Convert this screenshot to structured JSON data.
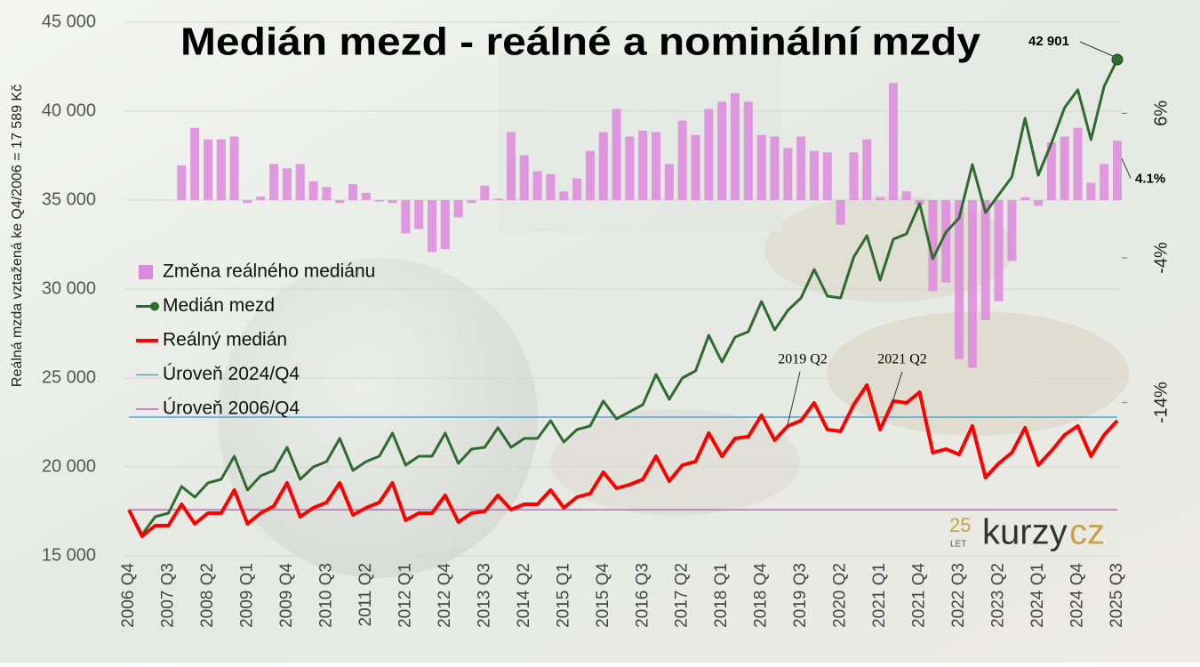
{
  "chart_data": {
    "type": "combo",
    "title": "Medián mezd - reálné a nominální mzdy",
    "y_axis_label": "Reálná mzda vztažená ke Q4/2006 = 17 589 Kč",
    "categories": [
      "2006 Q4",
      null,
      null,
      "2007 Q3",
      null,
      null,
      "2008 Q2",
      null,
      null,
      "2009 Q1",
      null,
      null,
      "2009 Q4",
      null,
      null,
      "2010 Q3",
      null,
      null,
      "2011 Q2",
      null,
      null,
      "2012 Q1",
      null,
      null,
      "2012 Q4",
      null,
      null,
      "2013 Q3",
      null,
      null,
      "2014 Q2",
      null,
      null,
      "2015 Q1",
      null,
      null,
      "2015 Q4",
      null,
      null,
      "2016 Q3",
      null,
      null,
      "2017 Q2",
      null,
      null,
      "2018 Q1",
      null,
      null,
      "2018 Q4",
      null,
      null,
      "2019 Q3",
      null,
      null,
      "2020 Q2",
      null,
      null,
      "2021 Q1",
      null,
      null,
      "2021 Q4",
      null,
      null,
      "2022 Q3",
      null,
      null,
      "2023 Q2",
      null,
      null,
      "2024 Q1",
      null,
      null,
      "2024 Q4",
      null,
      null,
      "2025 Q3"
    ],
    "ylim": [
      15000,
      45000
    ],
    "yticks": [
      {
        "value": 15000,
        "label": "15 000"
      },
      {
        "value": 20000,
        "label": "20 000"
      },
      {
        "value": 25000,
        "label": "25 000"
      },
      {
        "value": 30000,
        "label": "30 000"
      },
      {
        "value": 35000,
        "label": "35 000"
      },
      {
        "value": 40000,
        "label": "40 000"
      },
      {
        "value": 45000,
        "label": "45 000"
      }
    ],
    "y2lim": [
      -24.6,
      12.3
    ],
    "y2ticks": [
      {
        "value": 6,
        "label": "6%"
      },
      {
        "value": -4,
        "label": "-4%"
      },
      {
        "value": -14,
        "label": "-14%"
      }
    ],
    "grid": true,
    "legend": "left",
    "series": [
      {
        "name": "Změna reálného mediánu",
        "type": "bar",
        "axis": "y2",
        "color": "#dd88dd",
        "values": [
          null,
          null,
          null,
          null,
          2.4,
          5.0,
          4.2,
          4.2,
          4.4,
          -0.2,
          0.25,
          2.5,
          2.2,
          2.5,
          1.3,
          0.9,
          -0.2,
          1.1,
          0.5,
          -0.1,
          -0.2,
          -2.3,
          -2.0,
          -3.6,
          -3.4,
          -1.2,
          -0.2,
          1.0,
          0.1,
          4.7,
          3.1,
          2.0,
          1.8,
          0.6,
          1.5,
          3.4,
          4.7,
          6.3,
          4.4,
          4.8,
          4.7,
          2.5,
          5.5,
          4.5,
          6.3,
          6.8,
          7.4,
          6.8,
          4.5,
          4.4,
          3.6,
          4.4,
          3.4,
          3.3,
          -1.7,
          3.3,
          4.2,
          0.2,
          8.1,
          0.6,
          -0.3,
          -6.3,
          -5.7,
          -11.0,
          -11.6,
          -8.3,
          -7.0,
          -4.2,
          0.2,
          -0.4,
          4.0,
          4.4,
          5.0,
          1.2,
          2.5,
          4.1
        ],
        "value_labels": [
          null,
          null,
          null,
          null,
          null,
          null,
          null,
          null,
          null,
          null,
          null,
          null,
          null,
          null,
          null,
          null,
          null,
          null,
          null,
          null,
          null,
          null,
          null,
          null,
          null,
          null,
          null,
          null,
          null,
          null,
          null,
          null,
          null,
          null,
          null,
          null,
          null,
          null,
          null,
          null,
          null,
          null,
          null,
          null,
          null,
          null,
          null,
          null,
          null,
          null,
          null,
          null,
          null,
          null,
          null,
          null,
          null,
          null,
          null,
          null,
          null,
          null,
          null,
          null,
          null,
          null,
          null,
          null,
          null,
          null,
          null,
          null,
          null,
          null,
          null,
          "4.1%"
        ]
      },
      {
        "name": "Medián mezd",
        "type": "line",
        "color": "#2e6b2e",
        "values": [
          17589,
          16200,
          17200,
          17400,
          18900,
          18300,
          19100,
          19300,
          20600,
          18700,
          19500,
          19800,
          21100,
          19300,
          20000,
          20300,
          21600,
          19800,
          20300,
          20600,
          21900,
          20100,
          20600,
          20600,
          21900,
          20200,
          21000,
          21100,
          22200,
          21100,
          21600,
          21600,
          22600,
          21400,
          22100,
          22300,
          23700,
          22700,
          23100,
          23500,
          25200,
          23800,
          25000,
          25400,
          27400,
          25900,
          27300,
          27600,
          29300,
          27700,
          28800,
          29500,
          31100,
          29600,
          29500,
          31800,
          33000,
          30500,
          32800,
          33100,
          34800,
          31700,
          33200,
          34000,
          37000,
          34300,
          35300,
          36300,
          39600,
          36400,
          38200,
          40200,
          41200,
          38400,
          41400,
          42901
        ],
        "value_labels": [
          null,
          null,
          null,
          null,
          null,
          null,
          null,
          null,
          null,
          null,
          null,
          null,
          null,
          null,
          null,
          null,
          null,
          null,
          null,
          null,
          null,
          null,
          null,
          null,
          null,
          null,
          null,
          null,
          null,
          null,
          null,
          null,
          null,
          null,
          null,
          null,
          null,
          null,
          null,
          null,
          null,
          null,
          null,
          null,
          null,
          null,
          null,
          null,
          null,
          null,
          null,
          null,
          null,
          null,
          null,
          null,
          null,
          null,
          null,
          null,
          null,
          null,
          null,
          null,
          null,
          null,
          null,
          null,
          null,
          null,
          null,
          null,
          null,
          null,
          null,
          "42 901"
        ]
      },
      {
        "name": "Reálný medián",
        "type": "line",
        "color": "#ff0000",
        "values": [
          17589,
          16100,
          16700,
          16700,
          17900,
          16800,
          17400,
          17400,
          18700,
          16800,
          17400,
          17800,
          19100,
          17200,
          17700,
          18000,
          19100,
          17300,
          17700,
          18000,
          19100,
          17000,
          17400,
          17400,
          18400,
          16900,
          17400,
          17500,
          18400,
          17600,
          17900,
          17900,
          18700,
          17700,
          18300,
          18500,
          19700,
          18800,
          19000,
          19300,
          20600,
          19200,
          20100,
          20300,
          21900,
          20600,
          21600,
          21700,
          22900,
          21500,
          22300,
          22600,
          23600,
          22100,
          22000,
          23500,
          24600,
          22100,
          23700,
          23600,
          24200,
          20800,
          21000,
          20700,
          22300,
          19400,
          20200,
          20800,
          22200,
          20100,
          20900,
          21800,
          22300,
          20600,
          21800,
          22600
        ]
      },
      {
        "name": "Úroveň 2024/Q4",
        "type": "hline",
        "color": "#4aa8d8",
        "value": 22800
      },
      {
        "name": "Úroveň 2006/Q4",
        "type": "hline",
        "color": "#c65fc6",
        "value": 17589
      }
    ],
    "annotations": [
      "2019 Q2",
      "2021 Q2"
    ]
  },
  "logo": {
    "number": "25",
    "sub": "LET",
    "word": "kurzy",
    "suffix": "cz"
  }
}
